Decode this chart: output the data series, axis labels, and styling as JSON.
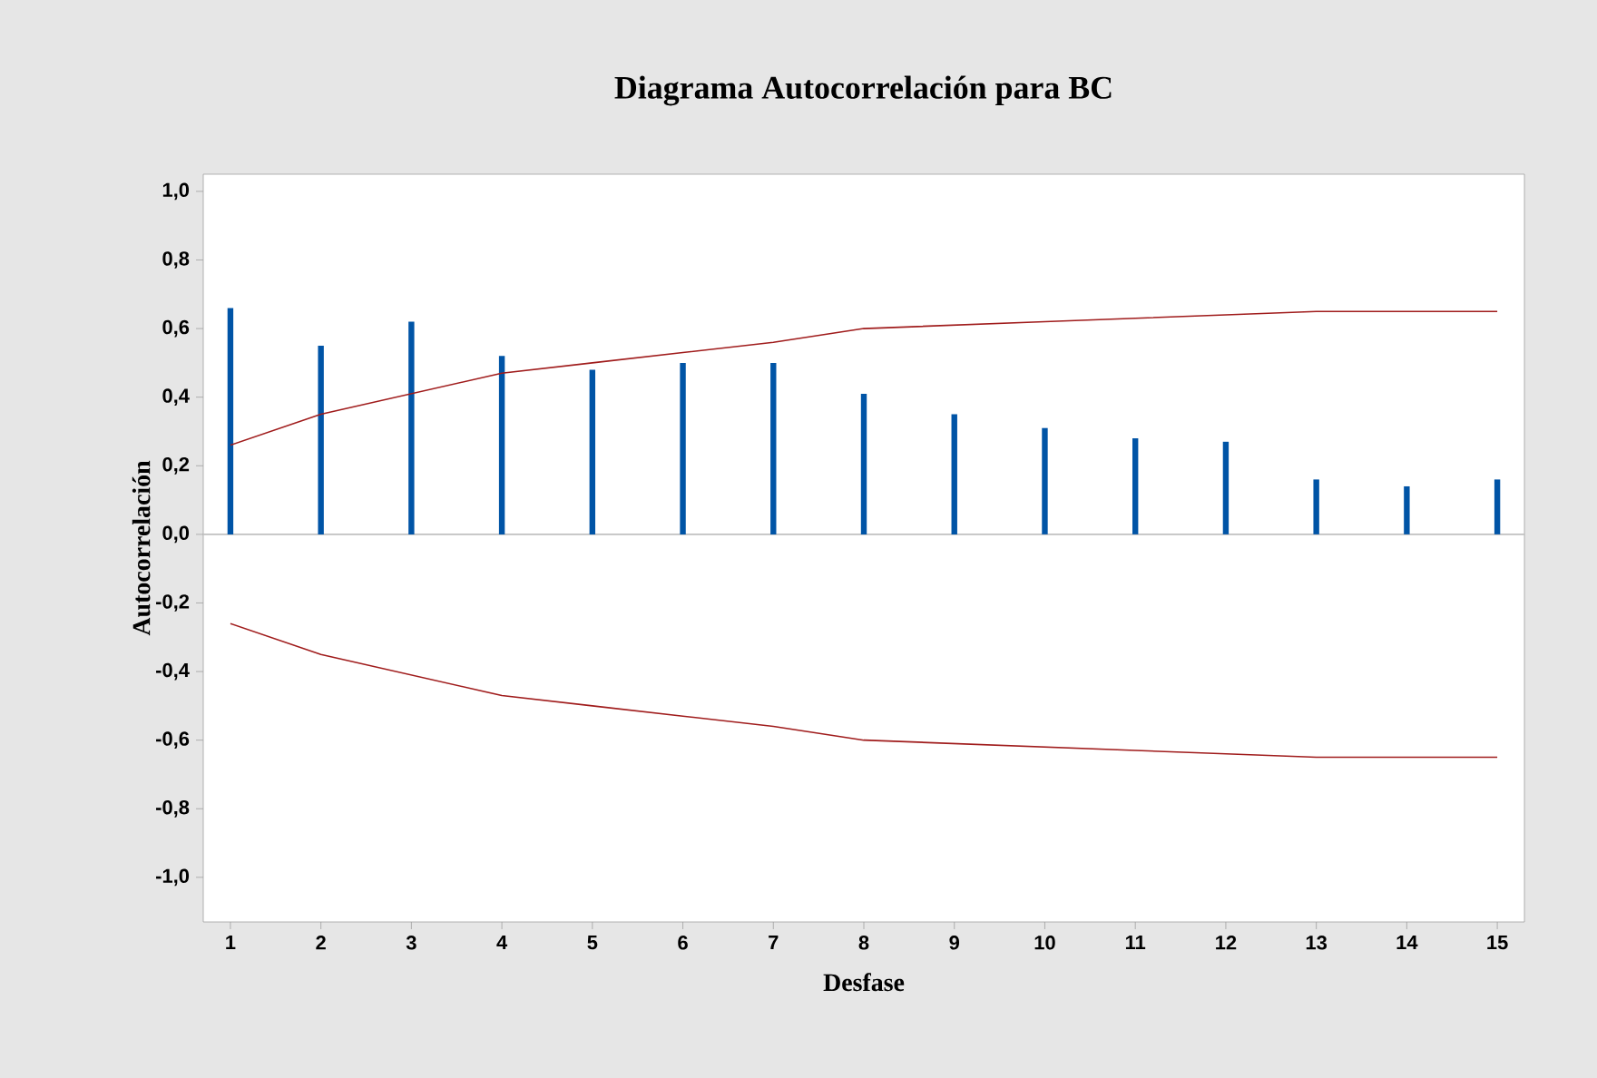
{
  "chart_data": {
    "type": "bar",
    "title": "Diagrama Autocorrelación para BC",
    "xlabel": "Desfase",
    "ylabel": "Autocorrelación",
    "x": [
      1,
      2,
      3,
      4,
      5,
      6,
      7,
      8,
      9,
      10,
      11,
      12,
      13,
      14,
      15
    ],
    "series": [
      {
        "color": "#0054a6",
        "values": [
          0.66,
          0.55,
          0.62,
          0.52,
          0.48,
          0.5,
          0.5,
          0.41,
          0.35,
          0.31,
          0.28,
          0.27,
          0.16,
          0.14,
          0.16
        ]
      },
      {
        "type": "line",
        "color": "#a01c1c",
        "values": [
          0.26,
          0.35,
          0.41,
          0.47,
          0.5,
          0.53,
          0.56,
          0.6,
          0.61,
          0.62,
          0.63,
          0.64,
          0.65,
          0.65,
          0.65
        ]
      },
      {
        "type": "line",
        "color": "#a01c1c",
        "values": [
          -0.26,
          -0.35,
          -0.41,
          -0.47,
          -0.5,
          -0.53,
          -0.56,
          -0.6,
          -0.61,
          -0.62,
          -0.63,
          -0.64,
          -0.65,
          -0.65,
          -0.65
        ]
      }
    ],
    "xlim": [
      0.7,
      15.3
    ],
    "ylim": [
      -1.13,
      1.05
    ],
    "xticks": [
      1,
      2,
      3,
      4,
      5,
      6,
      7,
      8,
      9,
      10,
      11,
      12,
      13,
      14,
      15
    ],
    "yticks": [
      {
        "value": -1.0,
        "label": "-1,0"
      },
      {
        "value": -0.8,
        "label": "-0,8"
      },
      {
        "value": -0.6,
        "label": "-0,6"
      },
      {
        "value": -0.4,
        "label": "-0,4"
      },
      {
        "value": -0.2,
        "label": "-0,2"
      },
      {
        "value": 0.0,
        "label": "0,0"
      },
      {
        "value": 0.2,
        "label": "0,2"
      },
      {
        "value": 0.4,
        "label": "0,4"
      },
      {
        "value": 0.6,
        "label": "0,6"
      },
      {
        "value": 0.8,
        "label": "0,8"
      },
      {
        "value": 1.0,
        "label": "1,0"
      }
    ],
    "ref_lines": [
      {
        "axis": "y",
        "value": 0,
        "color": "#c0c0c0"
      }
    ]
  }
}
